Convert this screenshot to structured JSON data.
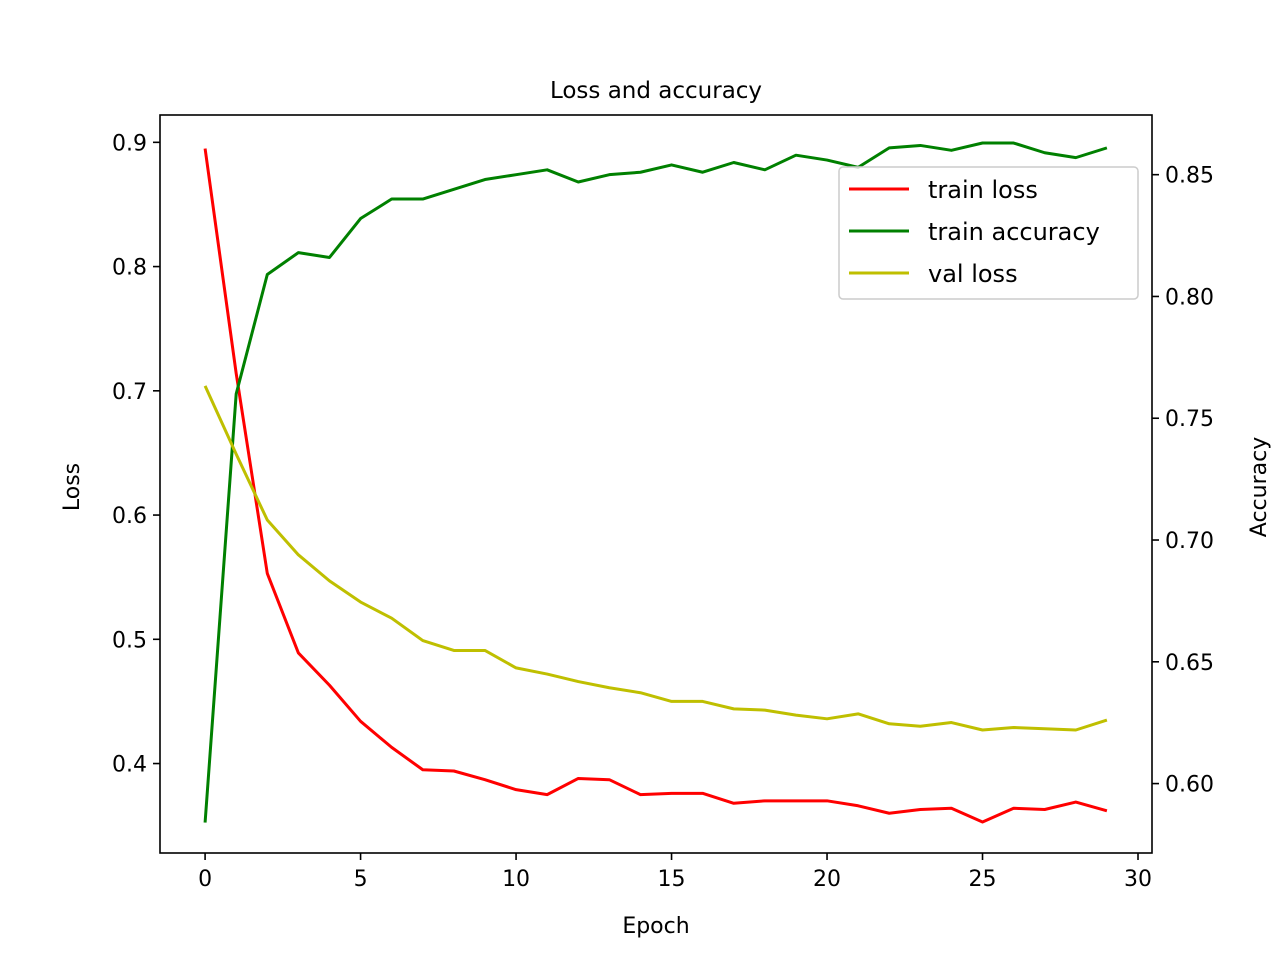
{
  "chart_data": {
    "type": "line",
    "title": "Loss and accuracy",
    "xlabel": "Epoch",
    "ylabel_left": "Loss",
    "ylabel_right": "Accuracy",
    "xlim": [
      -1.45,
      30.45
    ],
    "ylim_left": [
      0.328,
      0.922
    ],
    "ylim_right": [
      0.5715,
      0.8745
    ],
    "x_ticks": [
      0,
      5,
      10,
      15,
      20,
      25,
      30
    ],
    "y_left_ticks": [
      0.4,
      0.5,
      0.6,
      0.7,
      0.8,
      0.9
    ],
    "y_right_ticks": [
      0.6,
      0.65,
      0.7,
      0.75,
      0.8,
      0.85
    ],
    "y_right_tick_labels": [
      "0.60",
      "0.65",
      "0.70",
      "0.75",
      "0.80",
      "0.85"
    ],
    "grid": false,
    "legend_position": "upper-right",
    "x": [
      0,
      1,
      2,
      3,
      4,
      5,
      6,
      7,
      8,
      9,
      10,
      11,
      12,
      13,
      14,
      15,
      16,
      17,
      18,
      19,
      20,
      21,
      22,
      23,
      24,
      25,
      26,
      27,
      28,
      29
    ],
    "series": [
      {
        "name": "train loss",
        "axis": "left",
        "color": "#ff0000",
        "values": [
          0.895,
          0.714,
          0.553,
          0.489,
          0.463,
          0.434,
          0.413,
          0.395,
          0.394,
          0.387,
          0.379,
          0.375,
          0.388,
          0.387,
          0.375,
          0.376,
          0.376,
          0.368,
          0.37,
          0.37,
          0.37,
          0.366,
          0.36,
          0.363,
          0.364,
          0.353,
          0.364,
          0.363,
          0.369,
          0.362
        ]
      },
      {
        "name": "train accuracy",
        "axis": "right",
        "color": "#008000",
        "values": [
          0.584,
          0.76,
          0.809,
          0.818,
          0.816,
          0.832,
          0.84,
          0.84,
          0.844,
          0.848,
          0.85,
          0.852,
          0.847,
          0.85,
          0.851,
          0.854,
          0.851,
          0.855,
          0.852,
          0.858,
          0.856,
          0.853,
          0.861,
          0.862,
          0.86,
          0.863,
          0.863,
          0.859,
          0.857,
          0.861
        ]
      },
      {
        "name": "val loss",
        "axis": "left",
        "color": "#bfbf00",
        "values": [
          0.704,
          0.649,
          0.596,
          0.568,
          0.547,
          0.53,
          0.517,
          0.499,
          0.491,
          0.491,
          0.477,
          0.472,
          0.466,
          0.461,
          0.457,
          0.45,
          0.45,
          0.444,
          0.443,
          0.439,
          0.436,
          0.44,
          0.432,
          0.43,
          0.433,
          0.427,
          0.429,
          0.428,
          0.427,
          0.435
        ]
      }
    ]
  }
}
